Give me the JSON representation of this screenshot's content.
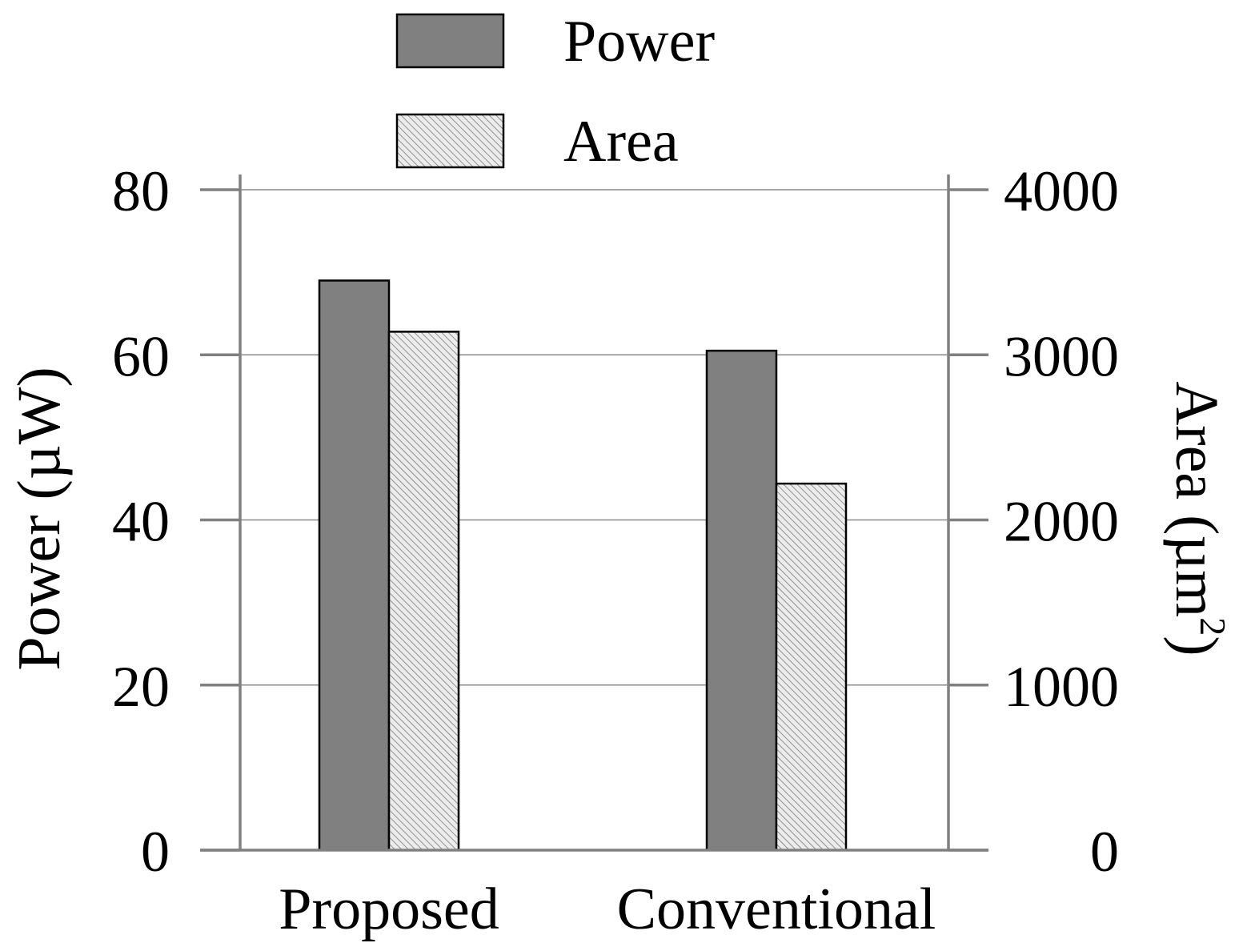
{
  "chart_data": {
    "type": "bar",
    "categories": [
      "Proposed",
      "Conventional"
    ],
    "series": [
      {
        "name": "Power",
        "axis": "left",
        "values": [
          69,
          60.5
        ],
        "color": "#808080",
        "fill": "solid"
      },
      {
        "name": "Area",
        "axis": "right",
        "values": [
          3140,
          2220
        ],
        "color": "#e8e8e8",
        "fill": "hatched"
      }
    ],
    "y_left": {
      "label": "Power (µW)",
      "range": [
        0,
        80
      ],
      "ticks": [
        "0",
        "20",
        "40",
        "60",
        "80"
      ]
    },
    "y_right": {
      "label_main": "Area (µm",
      "label_sup": "2",
      "label_end": ")",
      "range": [
        0,
        4000
      ],
      "ticks": [
        "0",
        "1000",
        "2000",
        "3000",
        "4000"
      ]
    },
    "grid": true,
    "legend_position": "top-center"
  }
}
